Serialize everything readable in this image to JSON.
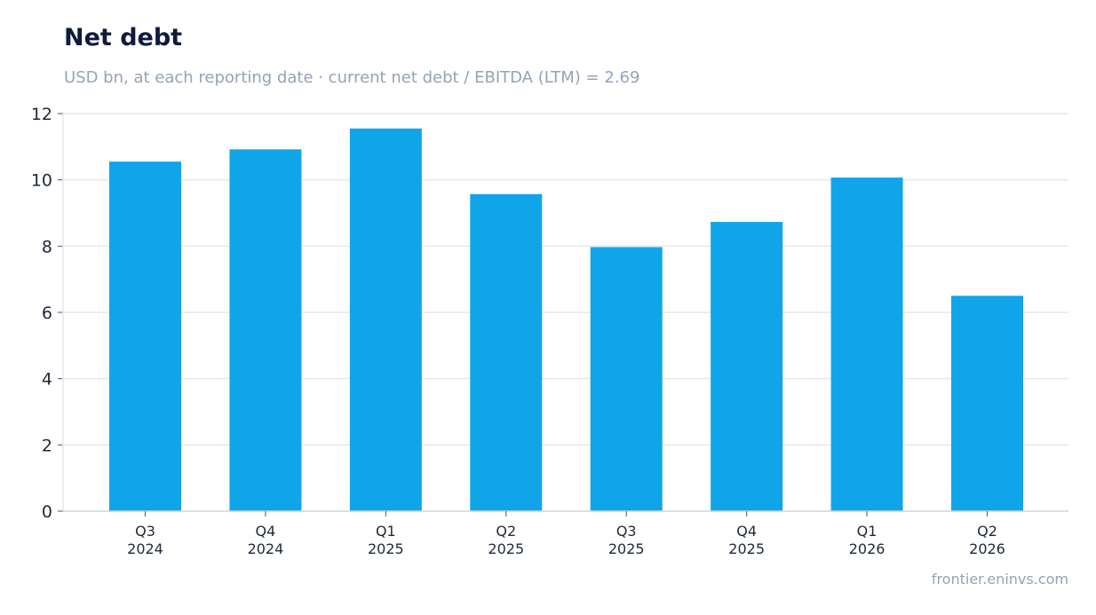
{
  "header": {
    "title": "Net debt",
    "subtitle": "USD bn, at each reporting date · current net debt / EBITDA (LTM) = 2.69"
  },
  "footer": {
    "source": "frontier.eninvs.com"
  },
  "colors": {
    "bar": "#10a5e8",
    "grid": "#e5e7eb",
    "axis": "#cbd5e1",
    "title": "#0f1b3d",
    "subtitle": "#94a3b8"
  },
  "chart_data": {
    "type": "bar",
    "categories": [
      [
        "Q3",
        "2024"
      ],
      [
        "Q4",
        "2024"
      ],
      [
        "Q1",
        "2025"
      ],
      [
        "Q2",
        "2025"
      ],
      [
        "Q3",
        "2025"
      ],
      [
        "Q4",
        "2025"
      ],
      [
        "Q1",
        "2026"
      ],
      [
        "Q2",
        "2026"
      ]
    ],
    "values": [
      10.55,
      10.92,
      11.55,
      9.57,
      7.97,
      8.73,
      10.07,
      6.5
    ],
    "title": "Net debt",
    "subtitle": "USD bn, at each reporting date · current net debt / EBITDA (LTM) = 2.69",
    "xlabel": "",
    "ylabel": "",
    "ylim": [
      0,
      12
    ],
    "yticks": [
      0,
      2,
      4,
      6,
      8,
      10,
      12
    ],
    "grid": true,
    "legend": "none"
  }
}
